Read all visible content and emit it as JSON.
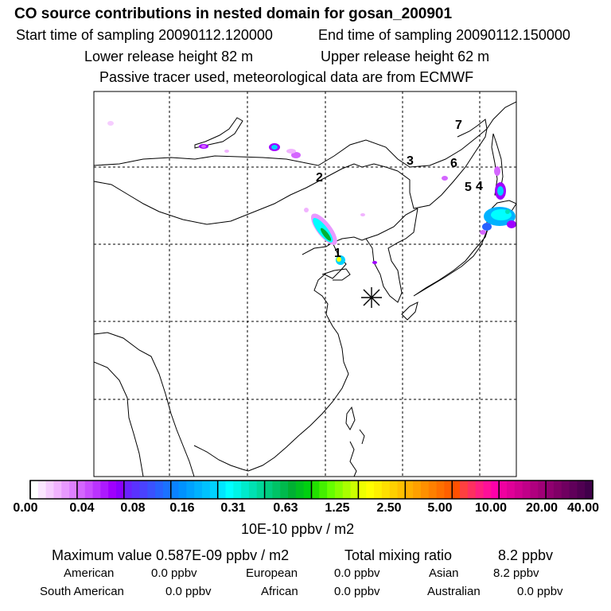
{
  "header": {
    "title": "CO  source contributions in nested domain for gosan_200901",
    "start_label": "Start time of sampling 20090112.120000",
    "end_label": "End time of sampling 20090112.150000",
    "lower_label": "Lower release height   82 m",
    "upper_label": "Upper release height   62 m",
    "tracer_line": "Passive tracer used, meteorological data are from ECMWF"
  },
  "map": {
    "site_numbers": [
      "1",
      "2",
      "3",
      "4",
      "5",
      "6",
      "7"
    ],
    "receptor_marker": "asterisk"
  },
  "colorbar": {
    "tick_labels": [
      "0.00",
      "0.04",
      "0.08",
      "0.16",
      "0.31",
      "0.63",
      "1.25",
      "2.50",
      "5.00",
      "10.00",
      "20.00",
      "40.00"
    ],
    "units": "10E-10 ppbv / m2",
    "colors": [
      "#ffffff",
      "#fbe6ff",
      "#f6cdff",
      "#f1b3ff",
      "#e899ff",
      "#de80ff",
      "#d466ff",
      "#c94dff",
      "#bb33ff",
      "#ad1aff",
      "#9f00ff",
      "#8a00ff",
      "#6a22ff",
      "#5a32ff",
      "#4a42ff",
      "#3a52ff",
      "#2962ff",
      "#1a72ff",
      "#0a82ff",
      "#0092ff",
      "#00a2ff",
      "#00b2ff",
      "#00c2ff",
      "#00d2ff",
      "#00e6ff",
      "#00ffff",
      "#00f5e6",
      "#00ebcc",
      "#00e1b3",
      "#00d799",
      "#00cd80",
      "#00c366",
      "#00b94d",
      "#00b033",
      "#00c020",
      "#00d010",
      "#22e000",
      "#44f000",
      "#66ff00",
      "#88ff00",
      "#aaff00",
      "#ccff00",
      "#eeff00",
      "#ffff00",
      "#fff000",
      "#ffe000",
      "#ffd000",
      "#ffc000",
      "#ffb000",
      "#ffa000",
      "#ff9000",
      "#ff8000",
      "#ff7000",
      "#ff6000",
      "#ff5000",
      "#ff4040",
      "#ff3060",
      "#ff2080",
      "#ff1099",
      "#ff00aa",
      "#f000a0",
      "#e00098",
      "#d00090",
      "#c00088",
      "#b0007f",
      "#a00077",
      "#90006f",
      "#800066",
      "#700060",
      "#60005a",
      "#500052",
      "#40004a"
    ]
  },
  "stats": {
    "max_label": "Maximum value  0.587E-09 ppbv / m2",
    "total_label": "Total mixing ratio",
    "total_value": "8.2 ppbv",
    "regions": [
      {
        "name": "American",
        "value": "0.0 ppbv"
      },
      {
        "name": "European",
        "value": "0.0 ppbv"
      },
      {
        "name": "Asian",
        "value": "8.2 ppbv"
      },
      {
        "name": "South American",
        "value": "0.0 ppbv"
      },
      {
        "name": "African",
        "value": "0.0 ppbv"
      },
      {
        "name": "Australian",
        "value": "0.0 ppbv"
      }
    ]
  }
}
